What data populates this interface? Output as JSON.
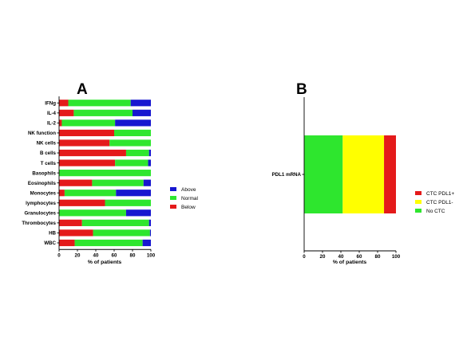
{
  "colors": {
    "above": "#1717d0",
    "normal": "#2ee62e",
    "below": "#e41a1a",
    "ctc_pdl1_pos": "#e41a1a",
    "ctc_pdl1_neg": "#ffff00",
    "no_ctc": "#2ee62e"
  },
  "chart_data": [
    {
      "type": "bar",
      "orientation": "horizontal",
      "stacked": true,
      "panel_label": "A",
      "xlabel": "% of patients",
      "xlim": [
        0,
        100
      ],
      "xticks": [
        "0",
        "20",
        "40",
        "60",
        "80",
        "100"
      ],
      "legend_position": "right",
      "categories": [
        "IFNg",
        "IL-4",
        "IL-2",
        "NK function",
        "NK cells",
        "B cells",
        "T cells",
        "Basophils",
        "Eosinophils",
        "Monocytes",
        "lymphocytes",
        "Granulocytes",
        "Thrombocytes",
        "HB",
        "WBC"
      ],
      "series": [
        {
          "name": "Below",
          "values": [
            10,
            16,
            3,
            60,
            55,
            73,
            61,
            0,
            36,
            6,
            50,
            0,
            25,
            37,
            17
          ]
        },
        {
          "name": "Normal",
          "values": [
            68,
            64,
            58,
            40,
            45,
            25,
            36,
            100,
            56,
            56,
            50,
            73,
            73,
            62,
            74
          ]
        },
        {
          "name": "Above",
          "values": [
            22,
            20,
            39,
            0,
            0,
            2,
            3,
            0,
            8,
            38,
            0,
            27,
            2,
            1,
            9
          ]
        }
      ],
      "legend": [
        "Above",
        "Normal",
        "Below"
      ]
    },
    {
      "type": "bar",
      "orientation": "horizontal",
      "stacked": true,
      "panel_label": "B",
      "xlabel": "% of patients",
      "xlim": [
        0,
        100
      ],
      "xticks": [
        "0",
        "20",
        "40",
        "60",
        "80",
        "100"
      ],
      "legend_position": "right",
      "categories": [
        "PDL1 mRNA"
      ],
      "series": [
        {
          "name": "No CTC",
          "values": [
            42
          ]
        },
        {
          "name": "CTC PDL1-",
          "values": [
            45
          ]
        },
        {
          "name": "CTC PDL1+",
          "values": [
            13
          ]
        }
      ],
      "legend": [
        "CTC PDL1+",
        "CTC PDL1-",
        "No CTC"
      ]
    }
  ]
}
